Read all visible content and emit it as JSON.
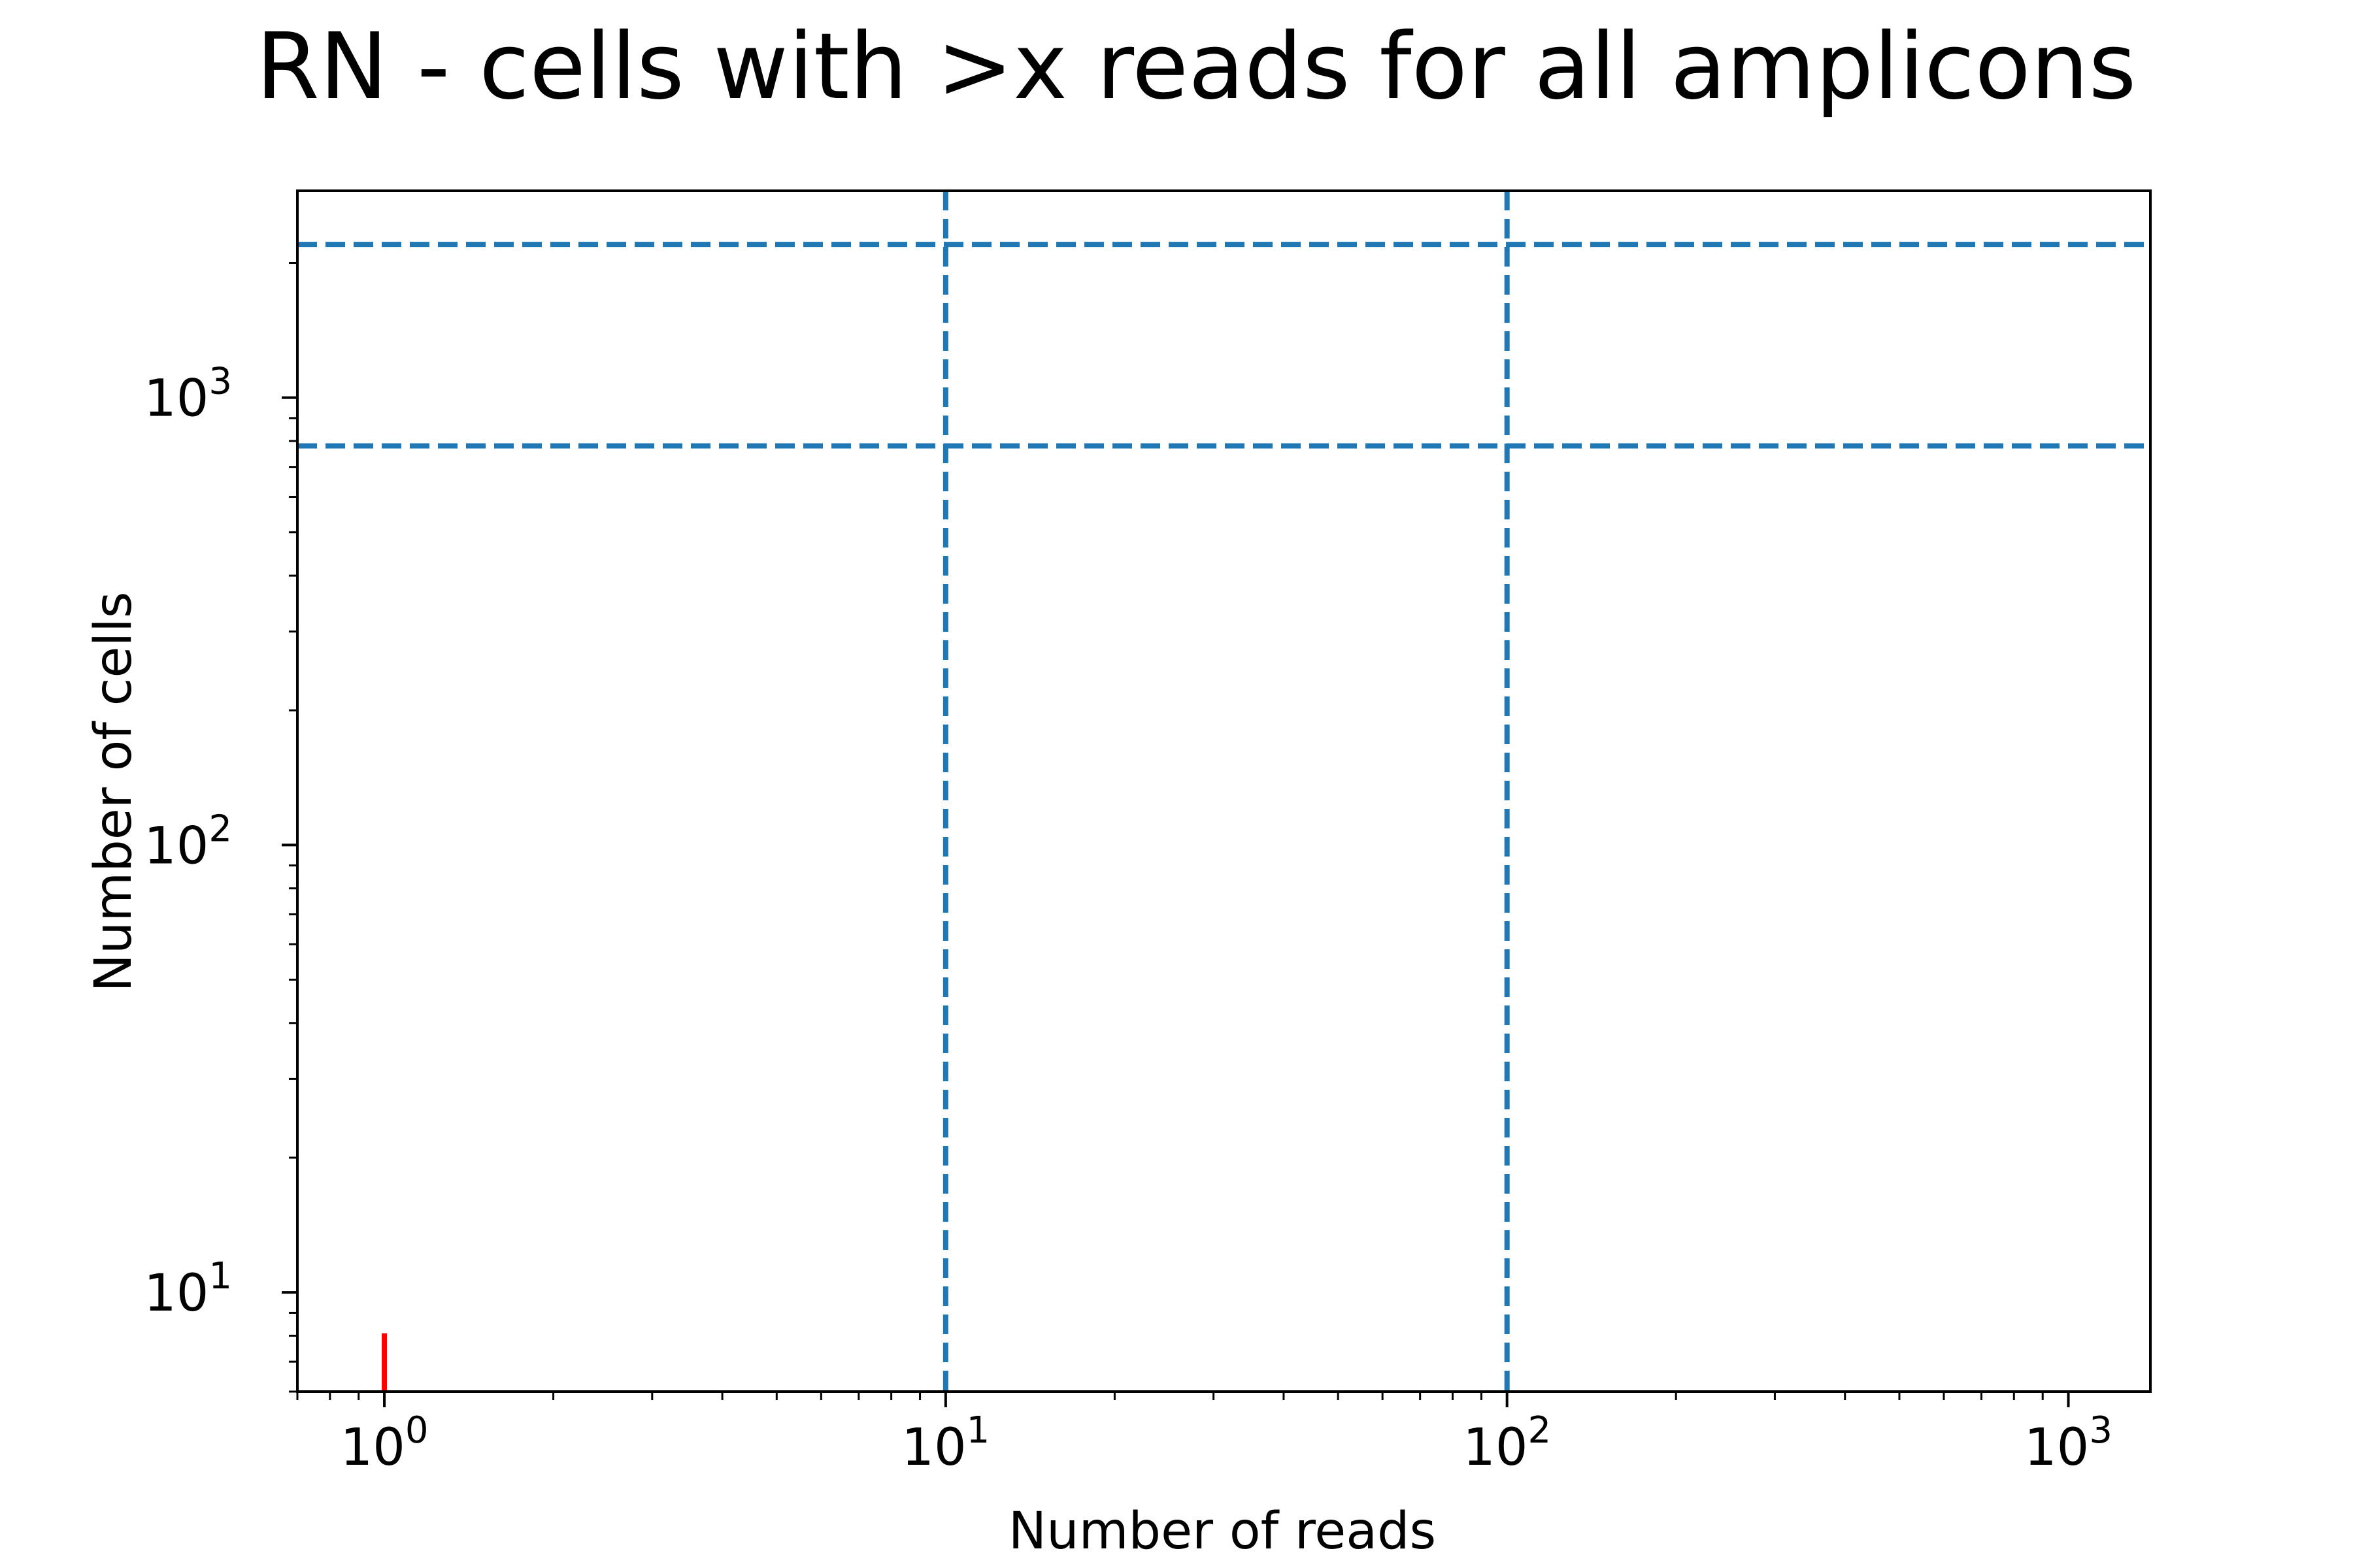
{
  "chart_data": {
    "type": "line",
    "title": "RN - cells with >x reads for all amplicons",
    "xlabel": "Number of reads",
    "ylabel": "Number of cells",
    "xscale": "log",
    "yscale": "log",
    "xlim": [
      0.7,
      1400
    ],
    "ylim": [
      6,
      2900
    ],
    "grid": false,
    "x_ticks": [
      {
        "value": 1,
        "base": "10",
        "exp": "0"
      },
      {
        "value": 10,
        "base": "10",
        "exp": "1"
      },
      {
        "value": 100,
        "base": "10",
        "exp": "2"
      },
      {
        "value": 1000,
        "base": "10",
        "exp": "3"
      }
    ],
    "y_ticks": [
      {
        "value": 10,
        "base": "10",
        "exp": "1"
      },
      {
        "value": 100,
        "base": "10",
        "exp": "2"
      },
      {
        "value": 1000,
        "base": "10",
        "exp": "3"
      }
    ],
    "series": [
      {
        "x": [
          1,
          1
        ],
        "y": [
          6,
          8.1
        ],
        "color": "#ff0000",
        "style": "solid"
      }
    ],
    "reference_lines": {
      "vertical": [
        {
          "x": 10,
          "color": "#1f77b4",
          "style": "dashed"
        },
        {
          "x": 100,
          "color": "#1f77b4",
          "style": "dashed"
        }
      ],
      "horizontal": [
        {
          "y": 2200,
          "color": "#1f77b4",
          "style": "dashed"
        },
        {
          "y": 780,
          "color": "#1f77b4",
          "style": "dashed"
        }
      ]
    }
  }
}
